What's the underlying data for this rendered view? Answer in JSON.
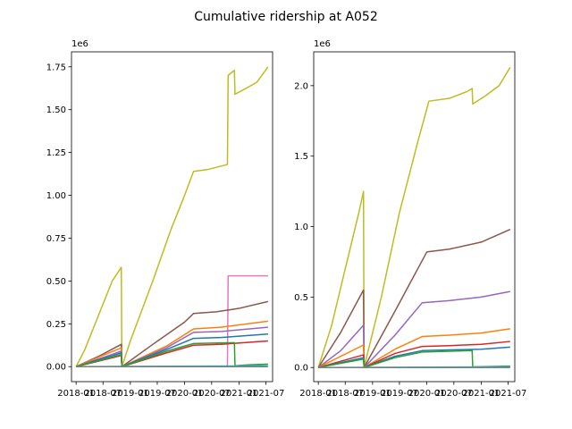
{
  "chart_data": {
    "type": "line",
    "title": "Cumulative ridership at A052",
    "x_tick_labels": [
      "2018-01",
      "2018-07",
      "2019-01",
      "2019-07",
      "2020-01",
      "2020-07",
      "2021-01",
      "2021-07"
    ],
    "xlim": [
      "2017-12-01",
      "2021-08-15"
    ],
    "panels": [
      {
        "exponent_label": "1e6",
        "ylim": [
          -0.0875,
          1.8375
        ],
        "y_ticks": [
          0.0,
          0.25,
          0.5,
          0.75,
          1.0,
          1.25,
          1.5,
          1.75
        ],
        "y_tick_labels": [
          "0.00",
          "0.25",
          "0.50",
          "0.75",
          "1.00",
          "1.25",
          "1.50",
          "1.75"
        ],
        "series": [
          {
            "color": "#bcbd22",
            "points": [
              [
                "2018-01-01",
                0.0
              ],
              [
                "2018-03-01",
                0.1
              ],
              [
                "2018-06-01",
                0.3
              ],
              [
                "2018-09-01",
                0.5
              ],
              [
                "2018-11-01",
                0.58
              ],
              [
                "2018-11-05",
                0.0
              ],
              [
                "2019-01-01",
                0.15
              ],
              [
                "2019-06-01",
                0.5
              ],
              [
                "2019-10-01",
                0.8
              ],
              [
                "2020-01-01",
                1.0
              ],
              [
                "2020-03-01",
                1.14
              ],
              [
                "2020-06-01",
                1.15
              ],
              [
                "2020-09-01",
                1.17
              ],
              [
                "2020-10-15",
                1.18
              ],
              [
                "2020-10-20",
                1.7
              ],
              [
                "2020-12-01",
                1.73
              ],
              [
                "2020-12-05",
                1.59
              ],
              [
                "2021-03-01",
                1.63
              ],
              [
                "2021-05-01",
                1.66
              ],
              [
                "2021-07-15",
                1.75
              ]
            ]
          },
          {
            "color": "#e377c2",
            "points": [
              [
                "2018-01-01",
                0.0
              ],
              [
                "2020-10-15",
                0.0
              ],
              [
                "2020-10-20",
                0.53
              ],
              [
                "2021-07-15",
                0.53
              ]
            ]
          },
          {
            "color": "#8c564b",
            "points": [
              [
                "2018-01-01",
                0.0
              ],
              [
                "2018-06-01",
                0.06
              ],
              [
                "2018-11-01",
                0.13
              ],
              [
                "2018-11-05",
                0.0
              ],
              [
                "2019-06-01",
                0.13
              ],
              [
                "2020-01-01",
                0.26
              ],
              [
                "2020-03-01",
                0.31
              ],
              [
                "2020-08-01",
                0.32
              ],
              [
                "2021-01-01",
                0.34
              ],
              [
                "2021-07-15",
                0.38
              ]
            ]
          },
          {
            "color": "#ff7f0e",
            "points": [
              [
                "2018-01-01",
                0.0
              ],
              [
                "2018-11-01",
                0.11
              ],
              [
                "2018-11-05",
                0.0
              ],
              [
                "2019-09-01",
                0.12
              ],
              [
                "2020-03-01",
                0.22
              ],
              [
                "2020-09-01",
                0.23
              ],
              [
                "2021-07-15",
                0.265
              ]
            ]
          },
          {
            "color": "#9467bd",
            "points": [
              [
                "2018-01-01",
                0.0
              ],
              [
                "2018-11-01",
                0.09
              ],
              [
                "2018-11-05",
                0.0
              ],
              [
                "2019-09-01",
                0.11
              ],
              [
                "2020-03-01",
                0.2
              ],
              [
                "2020-09-01",
                0.205
              ],
              [
                "2021-07-15",
                0.23
              ]
            ]
          },
          {
            "color": "#1f77b4",
            "points": [
              [
                "2018-01-01",
                0.0
              ],
              [
                "2018-11-01",
                0.08
              ],
              [
                "2018-11-05",
                0.0
              ],
              [
                "2019-09-01",
                0.1
              ],
              [
                "2020-03-01",
                0.165
              ],
              [
                "2020-09-01",
                0.17
              ],
              [
                "2021-07-15",
                0.19
              ]
            ]
          },
          {
            "color": "#d62728",
            "points": [
              [
                "2018-01-01",
                0.0
              ],
              [
                "2018-11-01",
                0.065
              ],
              [
                "2018-11-05",
                0.0
              ],
              [
                "2019-09-01",
                0.08
              ],
              [
                "2020-03-01",
                0.125
              ],
              [
                "2020-09-01",
                0.13
              ],
              [
                "2021-07-15",
                0.15
              ]
            ]
          },
          {
            "color": "#2ca02c",
            "points": [
              [
                "2018-01-01",
                0.0
              ],
              [
                "2018-11-01",
                0.07
              ],
              [
                "2018-11-05",
                0.0
              ],
              [
                "2019-09-01",
                0.09
              ],
              [
                "2020-03-01",
                0.135
              ],
              [
                "2020-12-01",
                0.14
              ],
              [
                "2020-12-05",
                0.005
              ],
              [
                "2021-03-01",
                0.01
              ],
              [
                "2021-07-15",
                0.015
              ]
            ]
          },
          {
            "color": "#17becf",
            "points": [
              [
                "2018-01-01",
                0.0
              ],
              [
                "2021-07-15",
                0.005
              ]
            ]
          },
          {
            "color": "#7f7f7f",
            "points": [
              [
                "2018-01-01",
                0.0
              ],
              [
                "2021-07-15",
                0.0
              ]
            ]
          }
        ]
      },
      {
        "exponent_label": "1e6",
        "ylim": [
          -0.1,
          2.24
        ],
        "y_ticks": [
          0.0,
          0.5,
          1.0,
          1.5,
          2.0
        ],
        "y_tick_labels": [
          "0.0",
          "0.5",
          "1.0",
          "1.5",
          "2.0"
        ],
        "series": [
          {
            "color": "#bcbd22",
            "points": [
              [
                "2018-01-01",
                0.0
              ],
              [
                "2018-04-01",
                0.3
              ],
              [
                "2018-07-01",
                0.7
              ],
              [
                "2018-10-01",
                1.1
              ],
              [
                "2018-11-01",
                1.25
              ],
              [
                "2018-11-05",
                0.0
              ],
              [
                "2019-03-01",
                0.5
              ],
              [
                "2019-07-01",
                1.1
              ],
              [
                "2019-11-01",
                1.6
              ],
              [
                "2020-01-15",
                1.89
              ],
              [
                "2020-06-01",
                1.91
              ],
              [
                "2020-10-01",
                1.96
              ],
              [
                "2020-11-01",
                1.98
              ],
              [
                "2020-11-05",
                1.87
              ],
              [
                "2021-02-01",
                1.93
              ],
              [
                "2021-05-01",
                2.0
              ],
              [
                "2021-07-15",
                2.13
              ]
            ]
          },
          {
            "color": "#8c564b",
            "points": [
              [
                "2018-01-01",
                0.0
              ],
              [
                "2018-06-01",
                0.25
              ],
              [
                "2018-11-01",
                0.55
              ],
              [
                "2018-11-05",
                0.0
              ],
              [
                "2019-06-01",
                0.4
              ],
              [
                "2020-01-01",
                0.82
              ],
              [
                "2020-06-01",
                0.84
              ],
              [
                "2021-01-01",
                0.89
              ],
              [
                "2021-07-15",
                0.98
              ]
            ]
          },
          {
            "color": "#9467bd",
            "points": [
              [
                "2018-01-01",
                0.0
              ],
              [
                "2018-06-01",
                0.12
              ],
              [
                "2018-11-01",
                0.3
              ],
              [
                "2018-11-05",
                0.0
              ],
              [
                "2019-06-01",
                0.23
              ],
              [
                "2019-12-01",
                0.46
              ],
              [
                "2020-06-01",
                0.475
              ],
              [
                "2021-01-01",
                0.5
              ],
              [
                "2021-07-15",
                0.54
              ]
            ]
          },
          {
            "color": "#ff7f0e",
            "points": [
              [
                "2018-01-01",
                0.0
              ],
              [
                "2018-11-01",
                0.16
              ],
              [
                "2018-11-05",
                0.0
              ],
              [
                "2019-06-01",
                0.13
              ],
              [
                "2019-12-01",
                0.22
              ],
              [
                "2020-06-01",
                0.23
              ],
              [
                "2021-01-01",
                0.245
              ],
              [
                "2021-07-15",
                0.275
              ]
            ]
          },
          {
            "color": "#d62728",
            "points": [
              [
                "2018-01-01",
                0.0
              ],
              [
                "2018-11-01",
                0.09
              ],
              [
                "2018-11-05",
                0.0
              ],
              [
                "2019-06-01",
                0.1
              ],
              [
                "2019-12-01",
                0.15
              ],
              [
                "2020-06-01",
                0.155
              ],
              [
                "2021-01-01",
                0.165
              ],
              [
                "2021-07-15",
                0.185
              ]
            ]
          },
          {
            "color": "#1f77b4",
            "points": [
              [
                "2018-01-01",
                0.0
              ],
              [
                "2018-11-01",
                0.07
              ],
              [
                "2018-11-05",
                0.0
              ],
              [
                "2019-06-01",
                0.08
              ],
              [
                "2019-12-01",
                0.12
              ],
              [
                "2020-06-01",
                0.125
              ],
              [
                "2021-01-01",
                0.13
              ],
              [
                "2021-07-15",
                0.145
              ]
            ]
          },
          {
            "color": "#2ca02c",
            "points": [
              [
                "2018-01-01",
                0.0
              ],
              [
                "2018-11-01",
                0.06
              ],
              [
                "2018-11-05",
                0.0
              ],
              [
                "2019-06-01",
                0.07
              ],
              [
                "2019-12-01",
                0.11
              ],
              [
                "2020-11-01",
                0.12
              ],
              [
                "2020-11-05",
                0.005
              ],
              [
                "2021-07-15",
                0.01
              ]
            ]
          },
          {
            "color": "#17becf",
            "points": [
              [
                "2018-01-01",
                0.0
              ],
              [
                "2021-07-15",
                0.005
              ]
            ]
          },
          {
            "color": "#7f7f7f",
            "points": [
              [
                "2018-01-01",
                0.0
              ],
              [
                "2021-07-15",
                0.0
              ]
            ]
          }
        ]
      }
    ]
  }
}
